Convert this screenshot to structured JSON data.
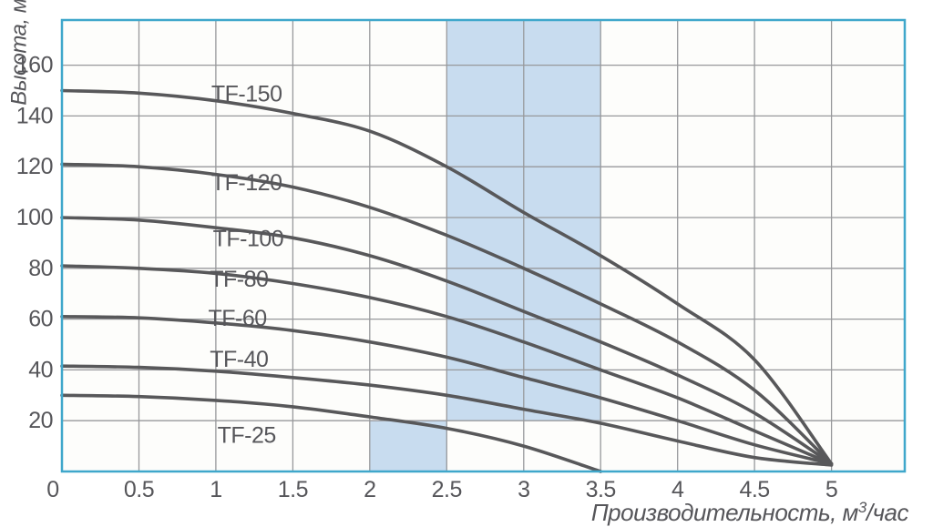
{
  "style": {
    "page_bg": "#ffffff",
    "plot_bg": "#fdfdfb",
    "border_color": "#3fa7cb",
    "grid_color": "#97989b",
    "curve_color": "#58585a",
    "text_color": "#56565a",
    "highlight_color": "#c8dcef"
  },
  "labels": {
    "y_axis_title": "Высота, м",
    "x_title_prefix": "Производительность, м",
    "x_title_sup": "3",
    "x_title_suffix": "/час"
  },
  "chart_data": {
    "type": "line",
    "title": "",
    "xlabel": "Производительность, м³/час",
    "ylabel": "Высота, м",
    "xlim": [
      0,
      5.48
    ],
    "ylim": [
      0,
      178
    ],
    "x_ticks": [
      0,
      0.5,
      1,
      1.5,
      2,
      2.5,
      3,
      3.5,
      4,
      4.5,
      5
    ],
    "y_ticks": [
      20,
      40,
      60,
      80,
      100,
      120,
      140,
      160
    ],
    "grid": true,
    "legend_position": "inline-curve-labels",
    "series": [
      {
        "name": "TF-150",
        "points": [
          [
            0,
            150
          ],
          [
            0.5,
            149
          ],
          [
            1,
            146
          ],
          [
            1.5,
            141
          ],
          [
            2,
            134
          ],
          [
            2.5,
            120
          ],
          [
            3,
            102
          ],
          [
            3.5,
            85
          ],
          [
            4,
            66
          ],
          [
            4.5,
            44
          ],
          [
            5,
            3
          ]
        ],
        "label_at": [
          1.2,
          149
        ]
      },
      {
        "name": "TF-120",
        "points": [
          [
            0,
            121
          ],
          [
            0.5,
            120
          ],
          [
            1,
            117
          ],
          [
            1.5,
            112
          ],
          [
            2,
            104
          ],
          [
            2.5,
            93
          ],
          [
            3,
            80
          ],
          [
            3.5,
            66
          ],
          [
            4,
            51
          ],
          [
            4.5,
            32
          ],
          [
            5,
            3
          ]
        ],
        "label_at": [
          1.2,
          114
        ]
      },
      {
        "name": "TF-100",
        "points": [
          [
            0,
            100
          ],
          [
            0.5,
            99
          ],
          [
            1,
            96
          ],
          [
            1.5,
            92
          ],
          [
            2,
            85
          ],
          [
            2.5,
            75
          ],
          [
            3,
            63
          ],
          [
            3.5,
            51
          ],
          [
            4,
            38
          ],
          [
            4.5,
            23
          ],
          [
            5,
            3
          ]
        ],
        "label_at": [
          1.21,
          92
        ]
      },
      {
        "name": "TF-80",
        "points": [
          [
            0,
            81
          ],
          [
            0.5,
            80
          ],
          [
            1,
            78
          ],
          [
            1.5,
            74
          ],
          [
            2,
            68.5
          ],
          [
            2.5,
            61
          ],
          [
            3,
            51
          ],
          [
            3.5,
            40
          ],
          [
            4,
            29
          ],
          [
            4.5,
            16
          ],
          [
            5,
            3
          ]
        ],
        "label_at": [
          1.15,
          76
        ]
      },
      {
        "name": "TF-60",
        "points": [
          [
            0,
            61
          ],
          [
            0.5,
            60.5
          ],
          [
            1,
            58.5
          ],
          [
            1.5,
            55.5
          ],
          [
            2,
            51
          ],
          [
            2.5,
            45
          ],
          [
            3,
            37
          ],
          [
            3.5,
            29
          ],
          [
            4,
            20
          ],
          [
            4.5,
            10.5
          ],
          [
            5,
            3
          ]
        ],
        "label_at": [
          1.14,
          60.5
        ]
      },
      {
        "name": "TF-40",
        "points": [
          [
            0,
            41.5
          ],
          [
            0.5,
            41
          ],
          [
            1,
            39.5
          ],
          [
            1.5,
            37
          ],
          [
            2,
            34
          ],
          [
            2.5,
            30
          ],
          [
            3,
            24.5
          ],
          [
            3.5,
            19
          ],
          [
            4,
            12
          ],
          [
            4.5,
            5.5
          ],
          [
            5,
            2.5
          ]
        ],
        "label_at": [
          1.15,
          44.5
        ]
      },
      {
        "name": "TF-25",
        "points": [
          [
            0,
            30
          ],
          [
            0.5,
            29.5
          ],
          [
            1,
            28
          ],
          [
            1.5,
            25.5
          ],
          [
            2,
            21.5
          ],
          [
            2.5,
            17
          ],
          [
            3,
            10
          ],
          [
            3.5,
            0
          ]
        ],
        "label_at": [
          1.2,
          14.5
        ]
      }
    ],
    "highlight_regions": [
      {
        "q": [
          2,
          2.5
        ],
        "h": [
          0,
          20
        ]
      },
      {
        "q": [
          2.5,
          3.5
        ],
        "h": [
          20,
          177.8
        ]
      }
    ]
  }
}
